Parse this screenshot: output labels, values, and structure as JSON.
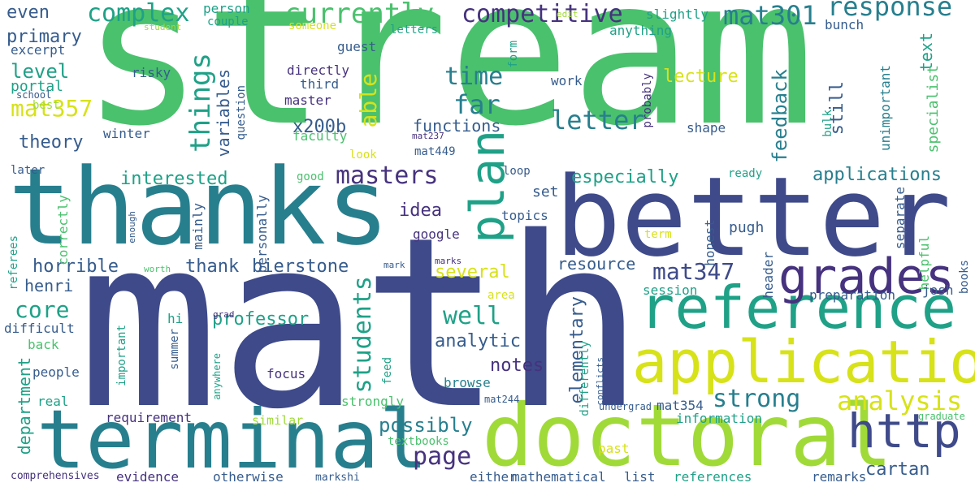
{
  "palette": {
    "dark_purple": "#46327e",
    "navy": "#3e4a89",
    "blue": "#365c8d",
    "steel": "#277f8e",
    "teal": "#1fa187",
    "green": "#4ac16d",
    "lime": "#a0da39",
    "yellow": "#d7e219",
    "background": "#ffffff"
  },
  "words": [
    "stream",
    "math",
    "thanks",
    "better",
    "terminal",
    "doctoral",
    "application",
    "reference",
    "grades",
    "http",
    "plan",
    "analysis",
    "students",
    "competitive",
    "currently",
    "complex",
    "things",
    "response",
    "mat301",
    "mat357",
    "mat347",
    "masters",
    "letter",
    "time",
    "far",
    "able",
    "strong",
    "well",
    "page",
    "possibly",
    "cartan",
    "core",
    "professor",
    "functions",
    "applications",
    "especially",
    "interested",
    "horrible",
    "thank",
    "bierstone",
    "idea",
    "feedback",
    "lecture",
    "variables",
    "x200b",
    "analytic",
    "notes",
    "elementary",
    "several",
    "resource",
    "henri",
    "department",
    "theory",
    "level",
    "primary",
    "even",
    "portal",
    "excerpt",
    "set",
    "still",
    "text",
    "specialist",
    "unimportant",
    "google",
    "topics",
    "pugh",
    "honest",
    "separate",
    "helpful",
    "books",
    "header",
    "session",
    "preparation",
    "josh",
    "mathematical",
    "list",
    "either",
    "references",
    "remarks",
    "textbooks",
    "otherwise",
    "evidence",
    "comprehensives",
    "markshi",
    "requirement",
    "similar",
    "information",
    "undergrad",
    "mat354",
    "graduate",
    "past",
    "real",
    "strongly",
    "mat244",
    "browse",
    "people",
    "focus",
    "feed",
    "important",
    "summer",
    "anywhere",
    "differently",
    "conflicts",
    "difficult",
    "back",
    "hi",
    "grad",
    "area",
    "personally",
    "mainly",
    "correctly",
    "referees",
    "enough",
    "worth",
    "mark",
    "marks",
    "later",
    "good",
    "look",
    "loop",
    "ready",
    "term",
    "winter",
    "best",
    "school",
    "risky",
    "directly",
    "third",
    "master",
    "question",
    "faculty",
    "mat237",
    "mat449",
    "work",
    "probably",
    "shape",
    "bulk",
    "guest",
    "letters",
    "someone",
    "couple",
    "person",
    "edit",
    "student",
    "slightly",
    "anything",
    "bunch",
    "form"
  ]
}
